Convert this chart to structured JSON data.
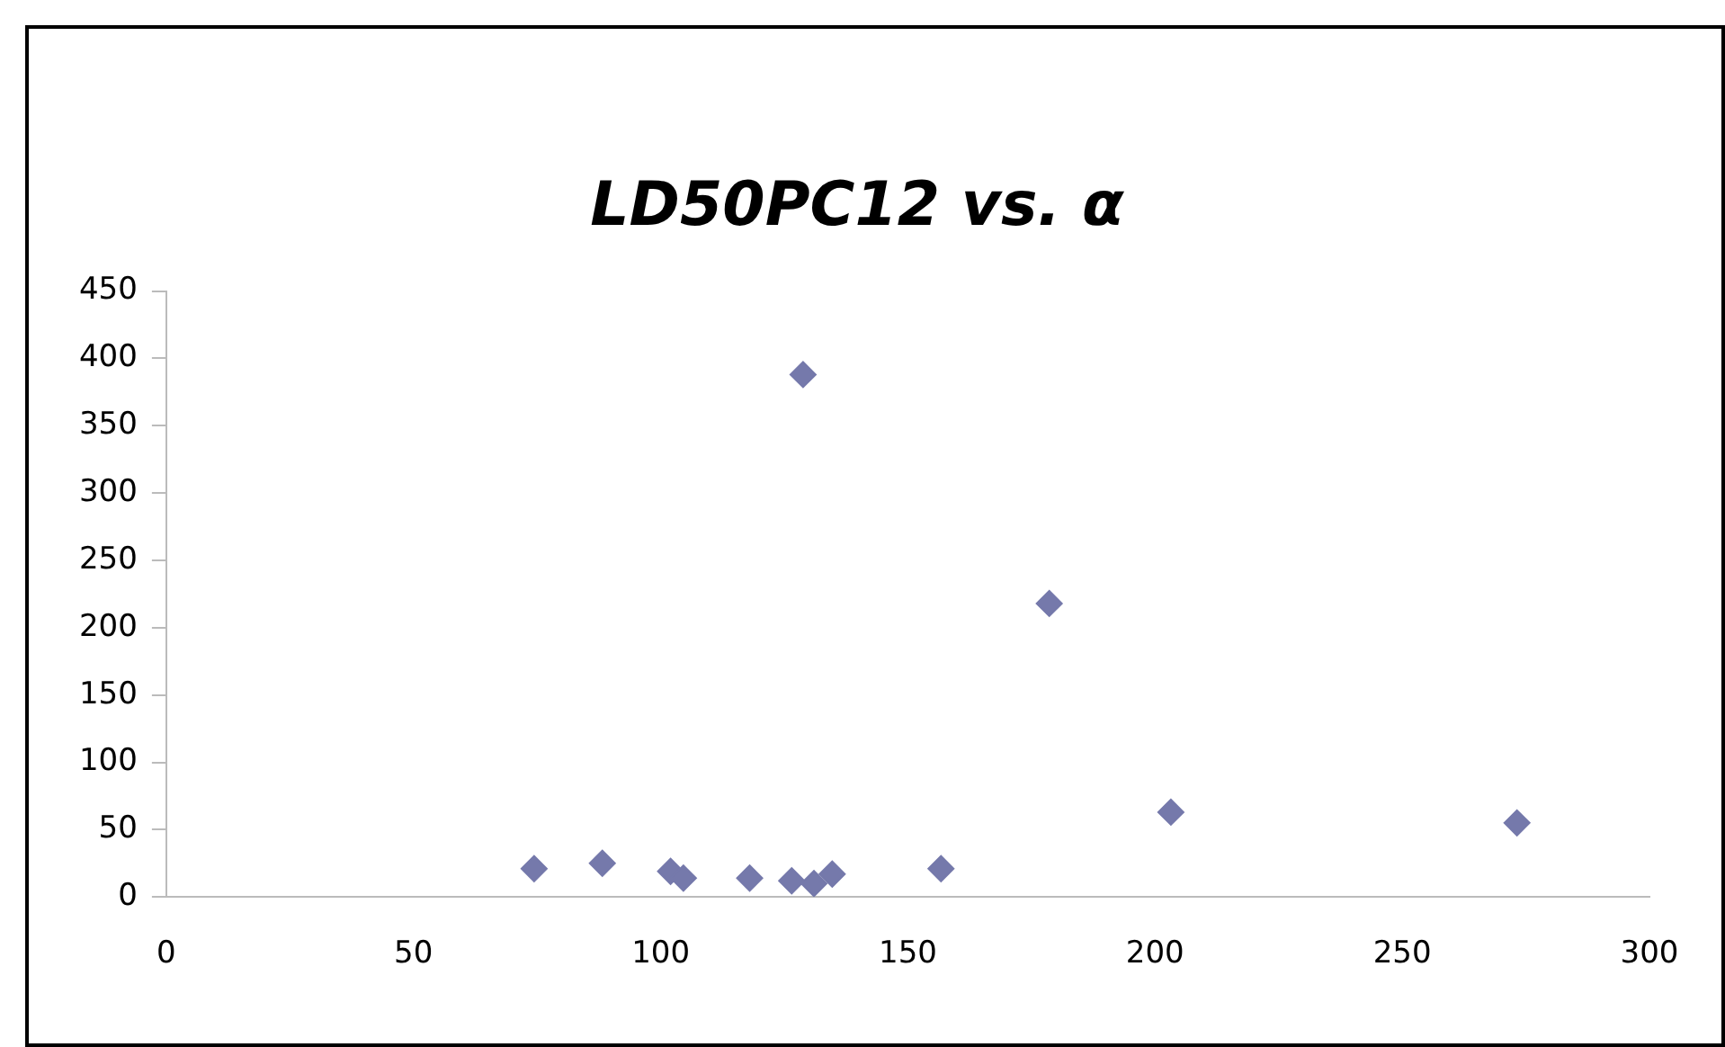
{
  "chart_data": {
    "type": "scatter",
    "title": "LD50PC12 vs. α",
    "marker": "diamond",
    "grid": false,
    "legend": false,
    "xlim": [
      0,
      300
    ],
    "xticks": [
      0,
      50,
      100,
      150,
      200,
      250,
      300
    ],
    "ylim": [
      0,
      450
    ],
    "yticks": [
      0,
      50,
      100,
      150,
      200,
      250,
      300,
      350,
      400,
      450
    ],
    "series": [
      {
        "color": "#7579ab",
        "x": [
          74.4,
          88.2,
          102,
          104.6,
          118,
          126.5,
          128.8,
          131,
          134.7,
          156.7,
          178.6,
          203.2,
          273.2
        ],
        "values": [
          21,
          25,
          19,
          14,
          14,
          12,
          388,
          10,
          17,
          21,
          218,
          63,
          55
        ]
      }
    ]
  }
}
